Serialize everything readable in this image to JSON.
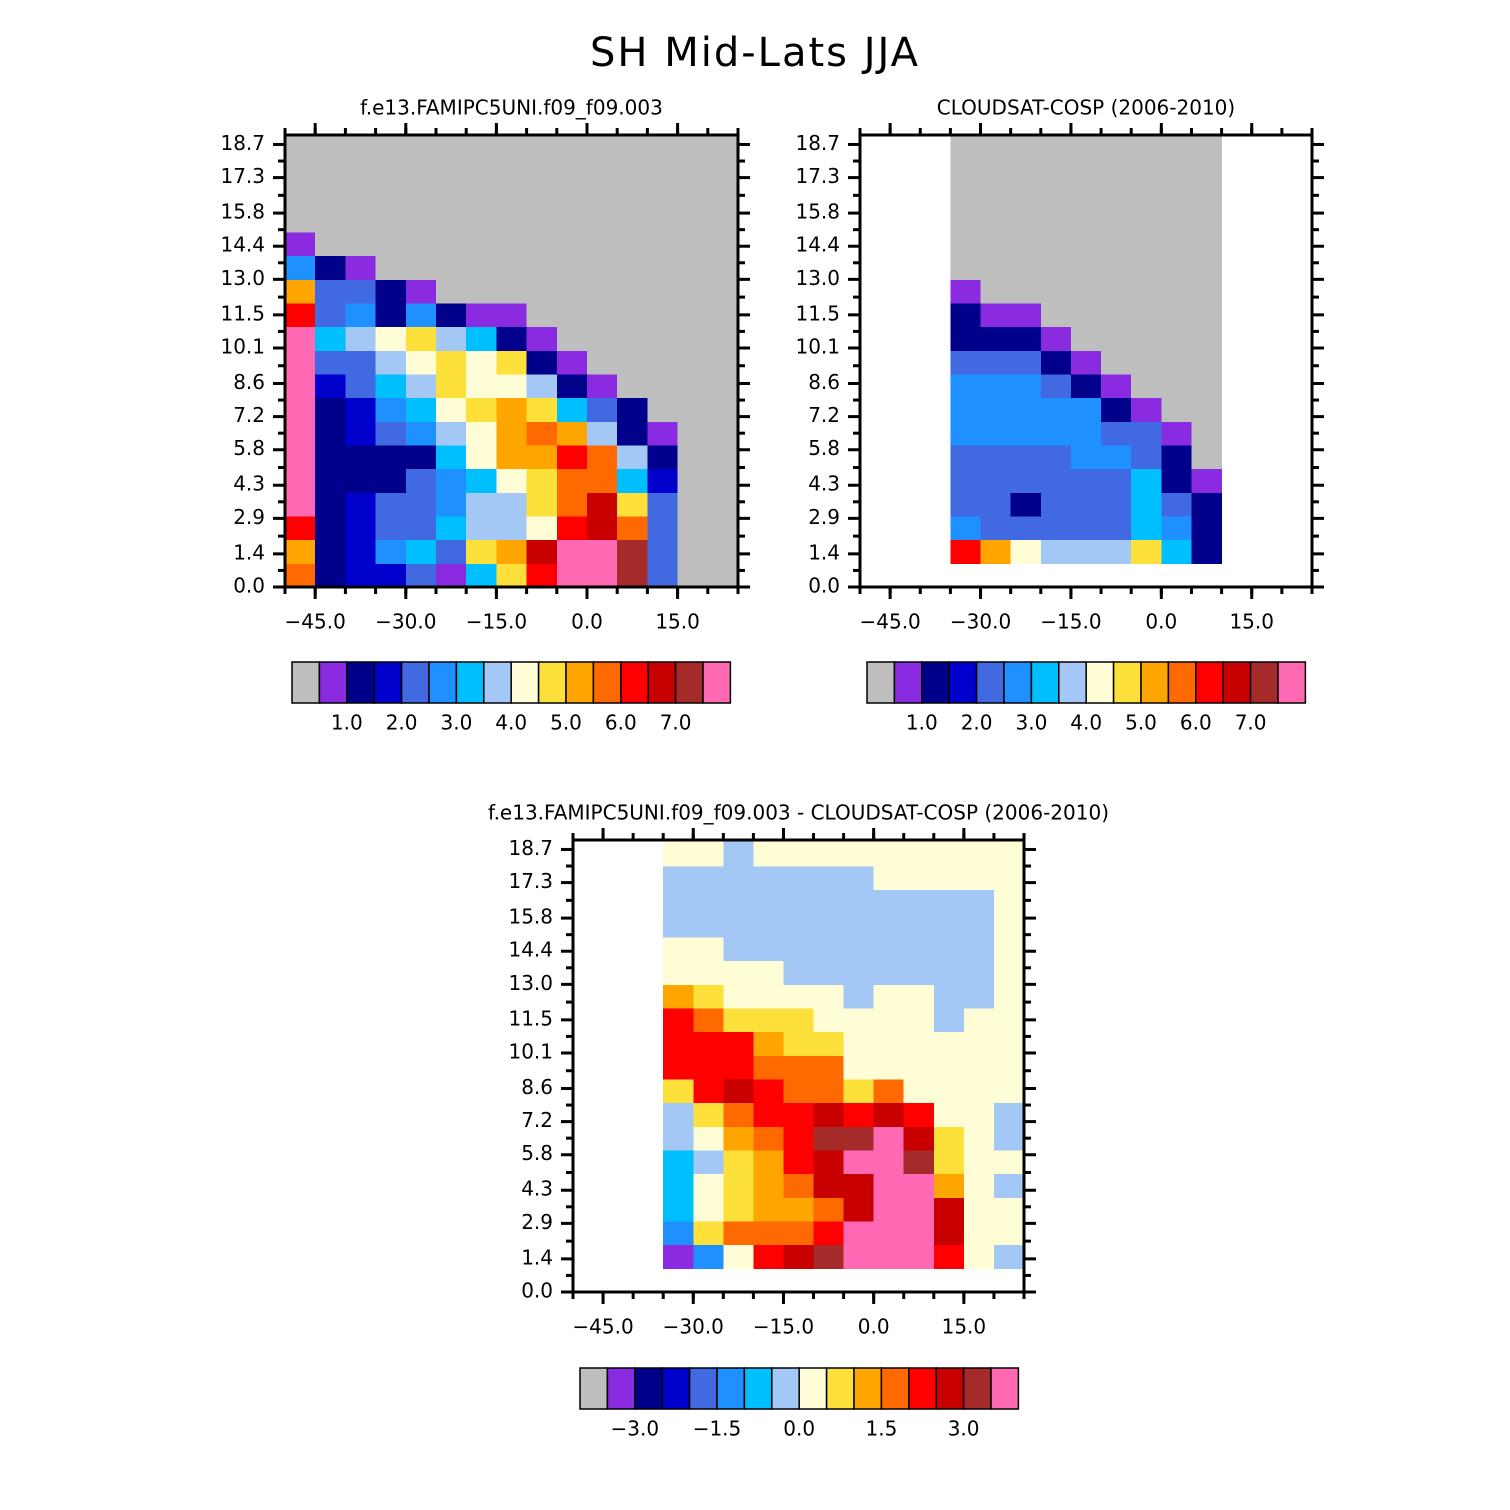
{
  "title": "SH Mid-Lats JJA",
  "chart_data": [
    {
      "type": "heatmap",
      "title": "f.e13.FAMIPC5UNI.f09_f09.003",
      "x_edges": [
        -50,
        -45,
        -40,
        -35,
        -30,
        -25,
        -20,
        -15,
        -10,
        -5,
        0,
        5,
        10,
        15,
        20,
        25
      ],
      "y_edges": [
        0,
        1,
        2,
        3,
        4,
        5,
        6,
        7,
        8,
        9,
        10,
        11,
        12,
        13,
        14,
        15,
        16,
        17,
        18,
        19.1
      ],
      "z": [
        [
          5.75,
          1.25,
          1.75,
          1.75,
          2.25,
          0.75,
          3.25,
          4.75,
          6.25,
          7.75,
          7.75,
          7.25,
          2.25,
          null,
          null
        ],
        [
          5.25,
          1.25,
          1.75,
          2.75,
          3.25,
          2.25,
          4.75,
          5.25,
          6.75,
          7.75,
          7.75,
          7.25,
          2.25,
          null,
          null
        ],
        [
          6.25,
          1.25,
          1.75,
          2.25,
          2.25,
          3.25,
          3.75,
          3.75,
          4.25,
          6.25,
          6.75,
          5.75,
          2.25,
          null,
          null
        ],
        [
          7.75,
          1.25,
          1.75,
          2.25,
          2.25,
          2.75,
          3.75,
          3.75,
          4.75,
          5.75,
          6.75,
          4.75,
          2.25,
          null,
          null
        ],
        [
          7.75,
          1.25,
          1.25,
          1.25,
          2.25,
          2.75,
          3.25,
          4.25,
          4.75,
          5.75,
          5.75,
          3.25,
          1.75,
          null,
          null
        ],
        [
          7.75,
          1.25,
          1.25,
          1.25,
          1.25,
          3.25,
          4.25,
          5.25,
          5.25,
          6.25,
          5.75,
          3.75,
          1.25,
          null,
          null
        ],
        [
          7.75,
          1.25,
          1.75,
          2.25,
          2.75,
          3.75,
          4.25,
          5.25,
          5.75,
          5.25,
          3.75,
          1.25,
          0.75,
          null,
          null
        ],
        [
          7.75,
          1.25,
          1.75,
          2.75,
          3.25,
          4.25,
          4.75,
          5.25,
          4.75,
          3.25,
          2.25,
          1.25,
          null,
          null,
          null
        ],
        [
          7.75,
          1.75,
          2.25,
          3.25,
          3.75,
          4.75,
          4.25,
          4.25,
          3.75,
          1.25,
          0.75,
          null,
          null,
          null,
          null
        ],
        [
          7.75,
          2.25,
          2.25,
          3.75,
          4.25,
          4.75,
          4.25,
          4.75,
          1.25,
          0.75,
          null,
          null,
          null,
          null,
          null
        ],
        [
          7.75,
          3.25,
          3.75,
          4.25,
          4.75,
          3.75,
          3.25,
          1.25,
          0.75,
          null,
          null,
          null,
          null,
          null,
          null
        ],
        [
          6.25,
          2.25,
          2.75,
          1.25,
          2.75,
          1.25,
          0.75,
          0.75,
          null,
          null,
          null,
          null,
          null,
          null,
          null
        ],
        [
          5.25,
          2.25,
          2.25,
          1.25,
          0.75,
          null,
          null,
          null,
          null,
          null,
          null,
          null,
          null,
          null,
          null
        ],
        [
          2.75,
          1.25,
          0.75,
          null,
          null,
          null,
          null,
          null,
          null,
          null,
          null,
          null,
          null,
          null,
          null
        ],
        [
          0.75,
          null,
          null,
          null,
          null,
          null,
          null,
          null,
          null,
          null,
          null,
          null,
          null,
          null,
          null
        ],
        [
          null,
          null,
          null,
          null,
          null,
          null,
          null,
          null,
          null,
          null,
          null,
          null,
          null,
          null,
          null
        ],
        [
          null,
          null,
          null,
          null,
          null,
          null,
          null,
          null,
          null,
          null,
          null,
          null,
          null,
          null,
          null
        ],
        [
          null,
          null,
          null,
          null,
          null,
          null,
          null,
          null,
          null,
          null,
          null,
          null,
          null,
          null,
          null
        ],
        [
          null,
          null,
          null,
          null,
          null,
          null,
          null,
          null,
          null,
          null,
          null,
          null,
          null,
          null,
          null
        ]
      ],
      "xlim": [
        -50,
        25
      ],
      "ylim": [
        0,
        19.1
      ],
      "xticks": [
        {
          "value": -45,
          "label": "−45.0"
        },
        {
          "value": -30,
          "label": "−30.0"
        },
        {
          "value": -15,
          "label": "−15.0"
        },
        {
          "value": 0,
          "label": "0.0"
        },
        {
          "value": 15,
          "label": "15.0"
        }
      ],
      "yticks": [
        {
          "value": 0,
          "label": "0.0"
        },
        1.4,
        2.9,
        4.3,
        5.8,
        7.2,
        8.6,
        10.1,
        11.5,
        {
          "value": 13,
          "label": "13.0"
        },
        14.4,
        15.8,
        17.3,
        18.7
      ],
      "colorbar": {
        "colors": [
          "#8a2be2",
          "#00008b",
          "#0000cd",
          "#4169e1",
          "#1e90ff",
          "#00bfff",
          "#a3c8f5",
          "#fffdd6",
          "#fde03a",
          "#ffa500",
          "#ff6a00",
          "#ff0000",
          "#c80000",
          "#a52a2a",
          "#ff69b4"
        ],
        "missing_color": "#bebebe",
        "levels": [
          1.0,
          1.5,
          2.0,
          2.5,
          3.0,
          3.5,
          4.0,
          4.5,
          5.0,
          5.5,
          6.0,
          6.5,
          7.0,
          7.5
        ],
        "ticks": [
          {
            "value": 1,
            "label": "1.0"
          },
          {
            "value": 2,
            "label": "2.0"
          },
          {
            "value": 3,
            "label": "3.0"
          },
          {
            "value": 4,
            "label": "4.0"
          },
          {
            "value": 5,
            "label": "5.0"
          },
          {
            "value": 6,
            "label": "6.0"
          },
          {
            "value": 7,
            "label": "7.0"
          }
        ]
      }
    },
    {
      "type": "heatmap",
      "title": "CLOUDSAT-COSP (2006-2010)",
      "x_edges": [
        -35,
        -30,
        -25,
        -20,
        -15,
        -10,
        -5,
        0,
        5,
        10
      ],
      "y_edges": [
        1,
        2,
        3,
        4,
        5,
        6,
        7,
        8,
        9,
        10,
        11,
        12,
        13,
        14,
        15,
        16,
        17,
        18,
        19.1
      ],
      "z": [
        [
          6.25,
          5.25,
          4.25,
          3.75,
          3.75,
          3.75,
          4.75,
          3.25,
          1.25
        ],
        [
          2.75,
          2.25,
          2.25,
          2.25,
          2.25,
          2.25,
          3.25,
          2.75,
          1.25
        ],
        [
          2.25,
          2.25,
          1.25,
          2.25,
          2.25,
          2.25,
          3.25,
          2.25,
          1.25
        ],
        [
          2.25,
          2.25,
          2.25,
          2.25,
          2.25,
          2.25,
          3.25,
          1.25,
          0.75
        ],
        [
          2.25,
          2.25,
          2.25,
          2.25,
          2.75,
          2.75,
          2.25,
          1.25,
          null
        ],
        [
          2.75,
          2.75,
          2.75,
          2.75,
          2.75,
          2.25,
          2.25,
          0.75,
          null
        ],
        [
          2.75,
          2.75,
          2.75,
          2.75,
          2.75,
          1.25,
          0.75,
          null,
          null
        ],
        [
          2.75,
          2.75,
          2.75,
          2.25,
          1.25,
          0.75,
          null,
          null,
          null
        ],
        [
          2.25,
          2.25,
          2.25,
          1.25,
          0.75,
          null,
          null,
          null,
          null
        ],
        [
          1.25,
          1.25,
          1.25,
          0.75,
          null,
          null,
          null,
          null,
          null
        ],
        [
          1.25,
          0.75,
          0.75,
          null,
          null,
          null,
          null,
          null,
          null
        ],
        [
          0.75,
          null,
          null,
          null,
          null,
          null,
          null,
          null,
          null
        ],
        [
          null,
          null,
          null,
          null,
          null,
          null,
          null,
          null,
          null
        ],
        [
          null,
          null,
          null,
          null,
          null,
          null,
          null,
          null,
          null
        ],
        [
          null,
          null,
          null,
          null,
          null,
          null,
          null,
          null,
          null
        ],
        [
          null,
          null,
          null,
          null,
          null,
          null,
          null,
          null,
          null
        ],
        [
          null,
          null,
          null,
          null,
          null,
          null,
          null,
          null,
          null
        ],
        [
          null,
          null,
          null,
          null,
          null,
          null,
          null,
          null,
          null
        ]
      ],
      "xlim": [
        -50,
        25
      ],
      "ylim": [
        0,
        19.1
      ],
      "xticks": [
        {
          "value": -45,
          "label": "−45.0"
        },
        {
          "value": -30,
          "label": "−30.0"
        },
        {
          "value": -15,
          "label": "−15.0"
        },
        {
          "value": 0,
          "label": "0.0"
        },
        {
          "value": 15,
          "label": "15.0"
        }
      ],
      "yticks": [
        {
          "value": 0,
          "label": "0.0"
        },
        1.4,
        2.9,
        4.3,
        5.8,
        7.2,
        8.6,
        10.1,
        11.5,
        {
          "value": 13,
          "label": "13.0"
        },
        14.4,
        15.8,
        17.3,
        18.7
      ],
      "colorbar": {
        "colors": [
          "#8a2be2",
          "#00008b",
          "#0000cd",
          "#4169e1",
          "#1e90ff",
          "#00bfff",
          "#a3c8f5",
          "#fffdd6",
          "#fde03a",
          "#ffa500",
          "#ff6a00",
          "#ff0000",
          "#c80000",
          "#a52a2a",
          "#ff69b4"
        ],
        "missing_color": "#bebebe",
        "levels": [
          1.0,
          1.5,
          2.0,
          2.5,
          3.0,
          3.5,
          4.0,
          4.5,
          5.0,
          5.5,
          6.0,
          6.5,
          7.0,
          7.5
        ],
        "ticks": [
          {
            "value": 1,
            "label": "1.0"
          },
          {
            "value": 2,
            "label": "2.0"
          },
          {
            "value": 3,
            "label": "3.0"
          },
          {
            "value": 4,
            "label": "4.0"
          },
          {
            "value": 5,
            "label": "5.0"
          },
          {
            "value": 6,
            "label": "6.0"
          },
          {
            "value": 7,
            "label": "7.0"
          }
        ]
      }
    },
    {
      "type": "heatmap",
      "title": "f.e13.FAMIPC5UNI.f09_f09.003 - CLOUDSAT-COSP (2006-2010)",
      "x_edges": [
        -35,
        -30,
        -25,
        -20,
        -15,
        -10,
        -5,
        0,
        5,
        10,
        15,
        20,
        25
      ],
      "y_edges": [
        1,
        2,
        3,
        4,
        5,
        6,
        7,
        8,
        9,
        10,
        11,
        12,
        13,
        14,
        15,
        16,
        17,
        18,
        19.1
      ],
      "z": [
        [
          -3.25,
          -1.25,
          0.25,
          2.25,
          2.75,
          3.25,
          3.75,
          3.75,
          3.75,
          2.25,
          0.25,
          -0.25
        ],
        [
          -1.25,
          0.75,
          1.75,
          1.75,
          1.75,
          2.25,
          3.75,
          3.75,
          3.75,
          2.75,
          0.25,
          0.25
        ],
        [
          -0.75,
          0.25,
          0.75,
          1.25,
          1.25,
          1.75,
          2.75,
          3.75,
          3.75,
          2.75,
          0.25,
          0.25
        ],
        [
          -0.75,
          0.25,
          0.75,
          1.25,
          1.75,
          2.75,
          2.75,
          3.75,
          3.75,
          1.25,
          0.25,
          -0.25
        ],
        [
          -0.75,
          -0.25,
          0.75,
          1.25,
          2.25,
          2.75,
          3.75,
          3.75,
          3.25,
          0.75,
          0.25,
          0.25
        ],
        [
          -0.25,
          0.25,
          1.25,
          1.75,
          2.25,
          3.25,
          3.25,
          3.75,
          2.75,
          0.75,
          0.25,
          -0.25
        ],
        [
          -0.25,
          0.75,
          1.75,
          2.25,
          2.25,
          2.75,
          2.25,
          2.75,
          2.25,
          0.25,
          0.25,
          -0.25
        ],
        [
          0.75,
          2.25,
          2.75,
          2.25,
          1.75,
          1.75,
          0.75,
          1.75,
          0.25,
          0.25,
          0.25,
          0.25
        ],
        [
          2.25,
          2.25,
          2.25,
          1.75,
          1.75,
          1.75,
          0.25,
          0.25,
          0.25,
          0.25,
          0.25,
          0.25
        ],
        [
          2.25,
          2.25,
          2.25,
          1.25,
          0.75,
          0.75,
          0.25,
          0.25,
          0.25,
          0.25,
          0.25,
          0.25
        ],
        [
          2.25,
          1.75,
          0.75,
          0.75,
          0.75,
          0.25,
          0.25,
          0.25,
          0.25,
          -0.25,
          0.25,
          0.25
        ],
        [
          1.25,
          0.75,
          0.25,
          0.25,
          0.25,
          0.25,
          -0.25,
          0.25,
          0.25,
          -0.25,
          -0.25,
          0.25
        ],
        [
          0.25,
          0.25,
          0.25,
          0.25,
          -0.25,
          -0.25,
          -0.25,
          -0.25,
          -0.25,
          -0.25,
          -0.25,
          0.25
        ],
        [
          0.25,
          0.25,
          -0.25,
          -0.25,
          -0.25,
          -0.25,
          -0.25,
          -0.25,
          -0.25,
          -0.25,
          -0.25,
          0.25
        ],
        [
          -0.25,
          -0.25,
          -0.25,
          -0.25,
          -0.25,
          -0.25,
          -0.25,
          -0.25,
          -0.25,
          -0.25,
          -0.25,
          0.25
        ],
        [
          -0.25,
          -0.25,
          -0.25,
          -0.25,
          -0.25,
          -0.25,
          -0.25,
          -0.25,
          -0.25,
          -0.25,
          -0.25,
          0.25
        ],
        [
          -0.25,
          -0.25,
          -0.25,
          -0.25,
          -0.25,
          -0.25,
          -0.25,
          0.25,
          0.25,
          0.25,
          0.25,
          0.25
        ],
        [
          0.25,
          0.25,
          -0.25,
          0.25,
          0.25,
          0.25,
          0.25,
          0.25,
          0.25,
          0.25,
          0.25,
          0.25
        ]
      ],
      "xlim": [
        -50,
        25
      ],
      "ylim": [
        0,
        19.1
      ],
      "xticks": [
        {
          "value": -45,
          "label": "−45.0"
        },
        {
          "value": -30,
          "label": "−30.0"
        },
        {
          "value": -15,
          "label": "−15.0"
        },
        {
          "value": 0,
          "label": "0.0"
        },
        {
          "value": 15,
          "label": "15.0"
        }
      ],
      "yticks": [
        {
          "value": 0,
          "label": "0.0"
        },
        1.4,
        2.9,
        4.3,
        5.8,
        7.2,
        8.6,
        10.1,
        11.5,
        {
          "value": 13,
          "label": "13.0"
        },
        14.4,
        15.8,
        17.3,
        18.7
      ],
      "colorbar": {
        "colors": [
          "#8a2be2",
          "#00008b",
          "#0000cd",
          "#4169e1",
          "#1e90ff",
          "#00bfff",
          "#a3c8f5",
          "#fffdd6",
          "#fde03a",
          "#ffa500",
          "#ff6a00",
          "#ff0000",
          "#c80000",
          "#a52a2a",
          "#ff69b4"
        ],
        "missing_color": "#bebebe",
        "levels": [
          -3.0,
          -2.5,
          -2.0,
          -1.5,
          -1.0,
          -0.5,
          0.0,
          0.5,
          1.0,
          1.5,
          2.0,
          2.5,
          3.0,
          3.5
        ],
        "ticks": [
          {
            "value": -3,
            "label": "−3.0"
          },
          {
            "value": -1.5,
            "label": "−1.5"
          },
          {
            "value": 0,
            "label": "0.0"
          },
          {
            "value": 1.5,
            "label": "1.5"
          },
          {
            "value": 3,
            "label": "3.0"
          }
        ]
      }
    }
  ]
}
